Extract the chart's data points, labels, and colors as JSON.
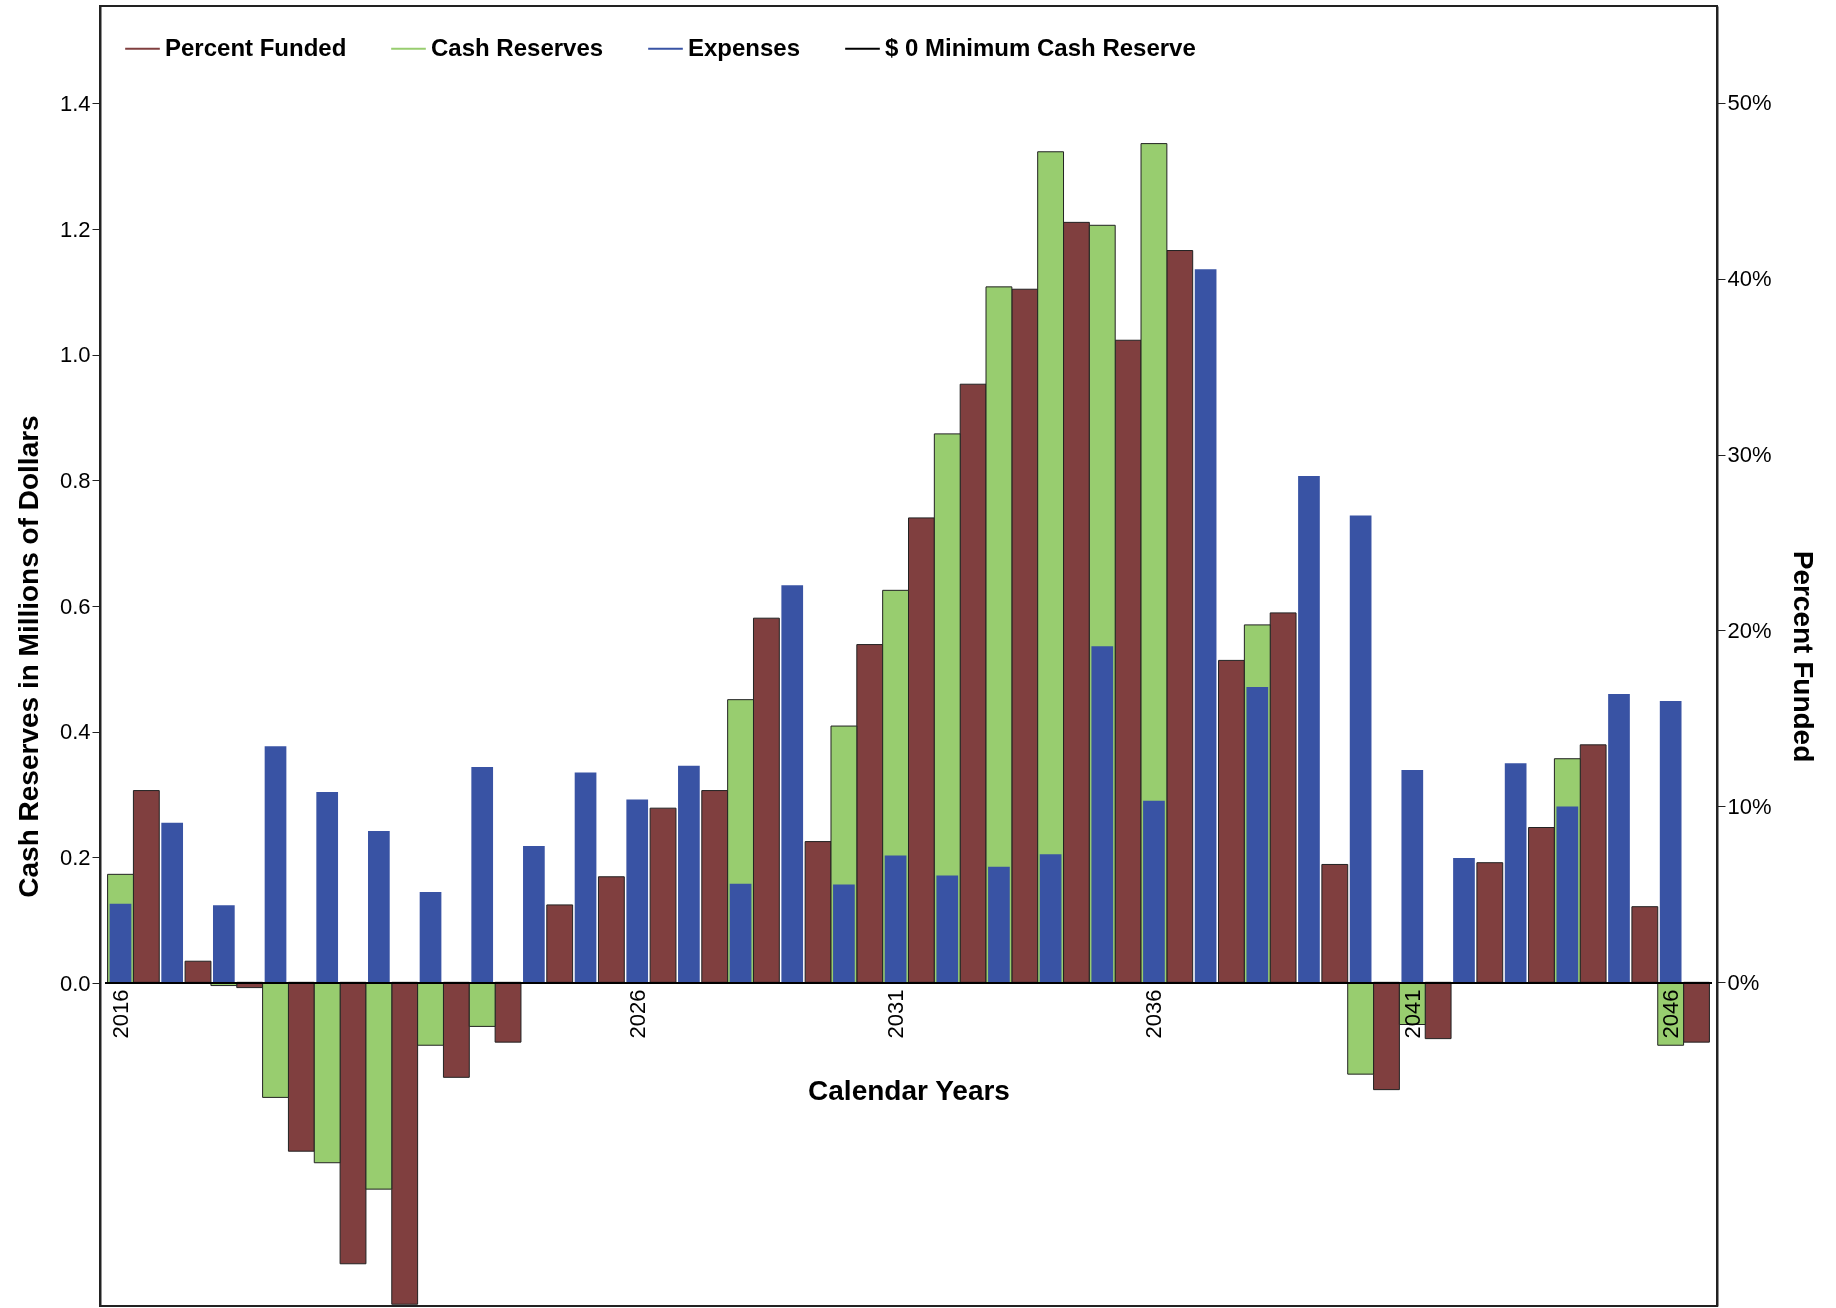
{
  "chart_data": {
    "type": "bar",
    "xlabel": "Calendar Years",
    "ylabel": "Cash Reserves in Millions of Dollars",
    "y2label": "Percent Funded",
    "x": [
      2016,
      2017,
      2018,
      2019,
      2020,
      2021,
      2022,
      2023,
      2024,
      2025,
      2026,
      2027,
      2028,
      2029,
      2030,
      2031,
      2032,
      2033,
      2034,
      2035,
      2036,
      2037,
      2038,
      2039,
      2040,
      2041,
      2042,
      2043,
      2044,
      2045,
      2046
    ],
    "series": [
      {
        "name": "Percent Funded",
        "color": "#803f3f",
        "axis": "y2",
        "x": [
          2016.5,
          2017.5,
          2018.5,
          2019.5,
          2020.5,
          2021.5,
          2022.5,
          2023.5,
          2024.5,
          2025.5,
          2026.5,
          2027.5,
          2028.5,
          2029.5,
          2030.5,
          2031.5,
          2032.5,
          2033.5,
          2034.5,
          2035.5,
          2036.5,
          2037.5,
          2038.5,
          2039.5,
          2040.5,
          2041.5,
          2042.5,
          2043.5,
          2044.5,
          2045.5,
          2046.5
        ],
        "values": [
          10.9,
          1.2,
          -0.3,
          -9.6,
          -16.0,
          -18.3,
          -5.4,
          -3.4,
          4.4,
          6.0,
          9.9,
          10.9,
          20.7,
          8.0,
          19.2,
          26.4,
          34.0,
          39.4,
          43.2,
          36.5,
          41.6,
          18.3,
          21.0,
          6.7,
          -6.1,
          -3.2,
          6.8,
          8.8,
          13.5,
          4.3,
          -3.4
        ]
      },
      {
        "name": "Cash Reserves",
        "color": "#98cd6f",
        "values": [
          0.173,
          null,
          -0.004,
          -0.182,
          -0.286,
          -0.328,
          -0.099,
          -0.069,
          null,
          null,
          null,
          null,
          0.451,
          null,
          0.409,
          0.625,
          0.874,
          1.108,
          1.323,
          1.206,
          1.336,
          null,
          0.57,
          null,
          -0.145,
          -0.066,
          null,
          null,
          0.357,
          null,
          -0.099
        ]
      },
      {
        "name": "Expenses",
        "color": "#3953a4",
        "values": [
          0.126,
          0.255,
          0.124,
          0.377,
          0.304,
          0.242,
          0.145,
          0.344,
          0.218,
          0.335,
          0.292,
          0.346,
          0.158,
          0.633,
          0.157,
          0.203,
          0.171,
          0.185,
          0.205,
          0.536,
          0.29,
          1.136,
          0.471,
          0.807,
          0.744,
          0.339,
          0.199,
          0.35,
          0.281,
          0.46,
          0.449
        ]
      },
      {
        "name": "$ 0 Minimum Cash Reserve",
        "color": "#000000",
        "type": "line",
        "x": [
          2015.7,
          2046.8
        ],
        "values": [
          0,
          0
        ]
      }
    ],
    "xlim": [
      2015.7,
      2046.8
    ],
    "xticks": [
      2016,
      2026,
      2031,
      2036,
      2041,
      2046
    ],
    "ylim": [
      -0.514,
      1.555
    ],
    "yticks": [
      {
        "value": 0,
        "label": "0.0"
      },
      0.2,
      0.4,
      0.6,
      0.8,
      {
        "value": 1,
        "label": "1.0"
      },
      1.2,
      1.4
    ],
    "y2lim": [
      -18.4,
      55.5
    ],
    "y2ticks": [
      {
        "value": 0,
        "label": "0%"
      },
      {
        "value": 10,
        "label": "10%"
      },
      {
        "value": 20,
        "label": "20%"
      },
      {
        "value": 30,
        "label": "30%"
      },
      {
        "value": 40,
        "label": "40%"
      },
      {
        "value": 50,
        "label": "50%"
      }
    ],
    "legend": "top",
    "grid": false
  }
}
